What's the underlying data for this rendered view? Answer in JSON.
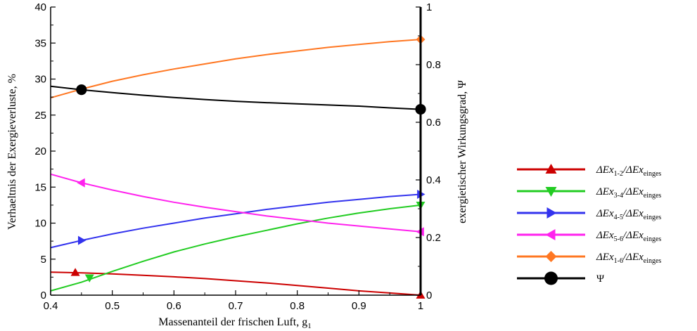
{
  "chart_data": {
    "type": "line",
    "xlabel": "Massenanteil der frischen Luft, g",
    "xlabel_sub": "1",
    "ylabel": "Verhaeltnis der Exergieverluste, %",
    "y2label": "exergietischer Wirkungsgrad, Ψ",
    "xlim": [
      0.4,
      1.0
    ],
    "ylim": [
      0,
      40
    ],
    "y2lim": [
      0,
      1
    ],
    "xticks": [
      "0.4",
      "0.5",
      "0.6",
      "0.7",
      "0.8",
      "0.9",
      "1"
    ],
    "yticks": [
      "0",
      "5",
      "10",
      "15",
      "20",
      "25",
      "30",
      "35",
      "40"
    ],
    "y2ticks": [
      "0",
      "0.2",
      "0.4",
      "0.6",
      "0.8",
      "1"
    ],
    "grid": false,
    "legend_position": "right",
    "series": [
      {
        "legend_main": "ΔEx",
        "sub1": "1-2",
        "legend_mid": "/ΔEx",
        "sub2": "einges",
        "color": "#cc0000",
        "marker": "triangle-up",
        "axis": "left",
        "x": [
          0.4,
          0.45,
          0.5,
          0.55,
          0.6,
          0.65,
          0.7,
          0.75,
          0.8,
          0.85,
          0.9,
          0.95,
          1.0
        ],
        "y": [
          3.2,
          3.1,
          2.95,
          2.75,
          2.55,
          2.3,
          2.0,
          1.7,
          1.35,
          0.98,
          0.6,
          0.3,
          0.0
        ],
        "marker_x": [
          0.44,
          1.0
        ],
        "marker_y": [
          3.15,
          0.0
        ]
      },
      {
        "legend_main": "ΔEx",
        "sub1": "3-4",
        "legend_mid": "/ΔEx",
        "sub2": "einges",
        "color": "#22cc22",
        "marker": "triangle-down",
        "axis": "left",
        "x": [
          0.4,
          0.45,
          0.5,
          0.55,
          0.6,
          0.65,
          0.7,
          0.75,
          0.8,
          0.85,
          0.9,
          0.95,
          1.0
        ],
        "y": [
          0.6,
          1.8,
          3.3,
          4.7,
          6.0,
          7.1,
          8.1,
          9.0,
          9.9,
          10.7,
          11.4,
          12.0,
          12.5
        ],
        "marker_x": [
          0.463,
          1.0
        ],
        "marker_y": [
          2.4,
          12.5
        ]
      },
      {
        "legend_main": "ΔEx",
        "sub1": "4-5",
        "legend_mid": "/ΔEx",
        "sub2": "einges",
        "color": "#3333ee",
        "marker": "triangle-right",
        "axis": "left",
        "x": [
          0.4,
          0.45,
          0.5,
          0.55,
          0.6,
          0.65,
          0.7,
          0.75,
          0.8,
          0.85,
          0.9,
          0.95,
          1.0
        ],
        "y": [
          6.6,
          7.6,
          8.5,
          9.3,
          10.0,
          10.7,
          11.3,
          11.9,
          12.4,
          12.9,
          13.3,
          13.7,
          14.0
        ],
        "marker_x": [
          0.45,
          1.0
        ],
        "marker_y": [
          7.6,
          14.0
        ]
      },
      {
        "legend_main": "ΔEx",
        "sub1": "5-6",
        "legend_mid": "/ΔEx",
        "sub2": "einges",
        "color": "#ff22ee",
        "marker": "triangle-left",
        "axis": "left",
        "x": [
          0.4,
          0.45,
          0.5,
          0.55,
          0.6,
          0.65,
          0.7,
          0.75,
          0.8,
          0.85,
          0.9,
          0.95,
          1.0
        ],
        "y": [
          16.8,
          15.6,
          14.6,
          13.7,
          12.9,
          12.2,
          11.6,
          11.0,
          10.5,
          10.0,
          9.6,
          9.2,
          8.8
        ],
        "marker_x": [
          0.45,
          1.0
        ],
        "marker_y": [
          15.6,
          8.8
        ]
      },
      {
        "legend_main": "ΔEx",
        "sub1": "1-6",
        "legend_mid": "/ΔEx",
        "sub2": "einges",
        "color": "#ff7722",
        "marker": "diamond",
        "axis": "left",
        "x": [
          0.4,
          0.45,
          0.5,
          0.55,
          0.6,
          0.65,
          0.7,
          0.75,
          0.8,
          0.85,
          0.9,
          0.95,
          1.0
        ],
        "y": [
          27.4,
          28.6,
          29.7,
          30.6,
          31.4,
          32.1,
          32.8,
          33.4,
          33.9,
          34.4,
          34.8,
          35.2,
          35.5
        ],
        "marker_x": [
          1.0
        ],
        "marker_y": [
          35.5
        ]
      },
      {
        "legend_main": "Ψ",
        "sub1": "",
        "legend_mid": "",
        "sub2": "",
        "color": "#000000",
        "marker": "circle",
        "axis": "right",
        "x": [
          0.4,
          0.45,
          0.5,
          0.55,
          0.6,
          0.65,
          0.7,
          0.75,
          0.8,
          0.85,
          0.9,
          0.95,
          1.0
        ],
        "y": [
          0.725,
          0.713,
          0.703,
          0.694,
          0.686,
          0.679,
          0.673,
          0.668,
          0.664,
          0.66,
          0.656,
          0.65,
          0.645
        ],
        "marker_x": [
          0.45,
          1.0
        ],
        "marker_y": [
          0.713,
          0.645
        ]
      }
    ]
  }
}
